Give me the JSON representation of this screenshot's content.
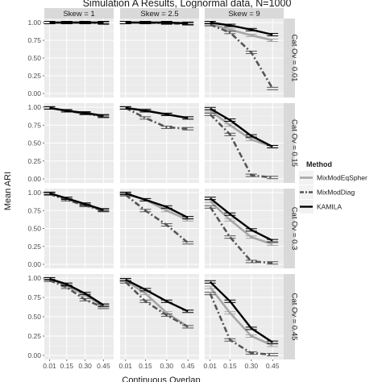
{
  "chart_data": {
    "type": "line",
    "title": "Simulation A Results, Lognormal data, N=1000",
    "xlabel": "Continuous Overlap",
    "ylabel": "Mean ARI",
    "x": [
      0.01,
      0.15,
      0.3,
      0.45
    ],
    "x_tick_labels": [
      "0.01",
      "0.15",
      "0.30",
      "0.45"
    ],
    "ylim": [
      0,
      1
    ],
    "y_tick_labels": [
      "0.00",
      "0.25",
      "0.50",
      "0.75",
      "1.00"
    ],
    "grid": true,
    "legend_position": "right",
    "legend_title": "Method",
    "col_facets": [
      "Skew = 1",
      "Skew = 2.5",
      "Skew = 9"
    ],
    "row_facets": [
      "Cat Ov = 0.01",
      "Cat Ov = 0.15",
      "Cat Ov = 0.3",
      "Cat Ov = 0.45"
    ],
    "series": [
      {
        "name": "MixModEqSpher",
        "color": "#a6a6a6",
        "dash": "solid"
      },
      {
        "name": "MixModDiag",
        "color": "#555555",
        "dash": "dashdot"
      },
      {
        "name": "KAMILA",
        "color": "#000000",
        "dash": "solid"
      }
    ],
    "panels": [
      {
        "row": 0,
        "col": 0,
        "values": {
          "MixModEqSpher": [
            1.0,
            1.0,
            1.0,
            1.0
          ],
          "MixModDiag": [
            1.0,
            1.0,
            1.0,
            0.99
          ],
          "KAMILA": [
            1.0,
            1.0,
            1.0,
            1.0
          ]
        }
      },
      {
        "row": 0,
        "col": 1,
        "values": {
          "MixModEqSpher": [
            1.0,
            1.0,
            1.0,
            0.99
          ],
          "MixModDiag": [
            1.0,
            1.0,
            0.99,
            0.98
          ],
          "KAMILA": [
            1.0,
            1.0,
            1.0,
            0.99
          ]
        }
      },
      {
        "row": 0,
        "col": 2,
        "values": {
          "MixModEqSpher": [
            0.98,
            0.9,
            0.82,
            0.75
          ],
          "MixModDiag": [
            0.97,
            0.86,
            0.58,
            0.07
          ],
          "KAMILA": [
            1.0,
            0.96,
            0.9,
            0.83
          ]
        }
      },
      {
        "row": 1,
        "col": 0,
        "values": {
          "MixModEqSpher": [
            0.99,
            0.95,
            0.91,
            0.88
          ],
          "MixModDiag": [
            0.99,
            0.95,
            0.91,
            0.87
          ],
          "KAMILA": [
            0.99,
            0.95,
            0.92,
            0.88
          ]
        }
      },
      {
        "row": 1,
        "col": 1,
        "values": {
          "MixModEqSpher": [
            0.99,
            0.96,
            0.9,
            0.85
          ],
          "MixModDiag": [
            0.99,
            0.85,
            0.72,
            0.7
          ],
          "KAMILA": [
            0.99,
            0.95,
            0.9,
            0.85
          ]
        }
      },
      {
        "row": 1,
        "col": 2,
        "values": {
          "MixModEqSpher": [
            0.95,
            0.75,
            0.55,
            0.45
          ],
          "MixModDiag": [
            0.9,
            0.62,
            0.05,
            0.02
          ],
          "KAMILA": [
            0.98,
            0.82,
            0.6,
            0.45
          ]
        }
      },
      {
        "row": 2,
        "col": 0,
        "values": {
          "MixModEqSpher": [
            0.99,
            0.92,
            0.83,
            0.75
          ],
          "MixModDiag": [
            0.98,
            0.9,
            0.82,
            0.75
          ],
          "KAMILA": [
            0.99,
            0.92,
            0.84,
            0.76
          ]
        }
      },
      {
        "row": 2,
        "col": 1,
        "values": {
          "MixModEqSpher": [
            0.98,
            0.9,
            0.75,
            0.62
          ],
          "MixModDiag": [
            0.97,
            0.75,
            0.55,
            0.3
          ],
          "KAMILA": [
            0.99,
            0.9,
            0.8,
            0.65
          ]
        }
      },
      {
        "row": 2,
        "col": 2,
        "values": {
          "MixModEqSpher": [
            0.88,
            0.62,
            0.38,
            0.28
          ],
          "MixModDiag": [
            0.8,
            0.38,
            0.04,
            0.02
          ],
          "KAMILA": [
            0.92,
            0.7,
            0.48,
            0.33
          ]
        }
      },
      {
        "row": 3,
        "col": 0,
        "values": {
          "MixModEqSpher": [
            0.99,
            0.9,
            0.78,
            0.64
          ],
          "MixModDiag": [
            0.97,
            0.88,
            0.72,
            0.62
          ],
          "KAMILA": [
            0.99,
            0.92,
            0.8,
            0.65
          ]
        }
      },
      {
        "row": 3,
        "col": 1,
        "values": {
          "MixModEqSpher": [
            0.97,
            0.8,
            0.55,
            0.37
          ],
          "MixModDiag": [
            0.95,
            0.7,
            0.52,
            0.37
          ],
          "KAMILA": [
            0.98,
            0.85,
            0.7,
            0.57
          ]
        }
      },
      {
        "row": 3,
        "col": 2,
        "values": {
          "MixModEqSpher": [
            0.88,
            0.55,
            0.25,
            0.13
          ],
          "MixModDiag": [
            0.8,
            0.2,
            0.03,
            0.01
          ],
          "KAMILA": [
            0.95,
            0.7,
            0.35,
            0.17
          ]
        }
      }
    ]
  }
}
